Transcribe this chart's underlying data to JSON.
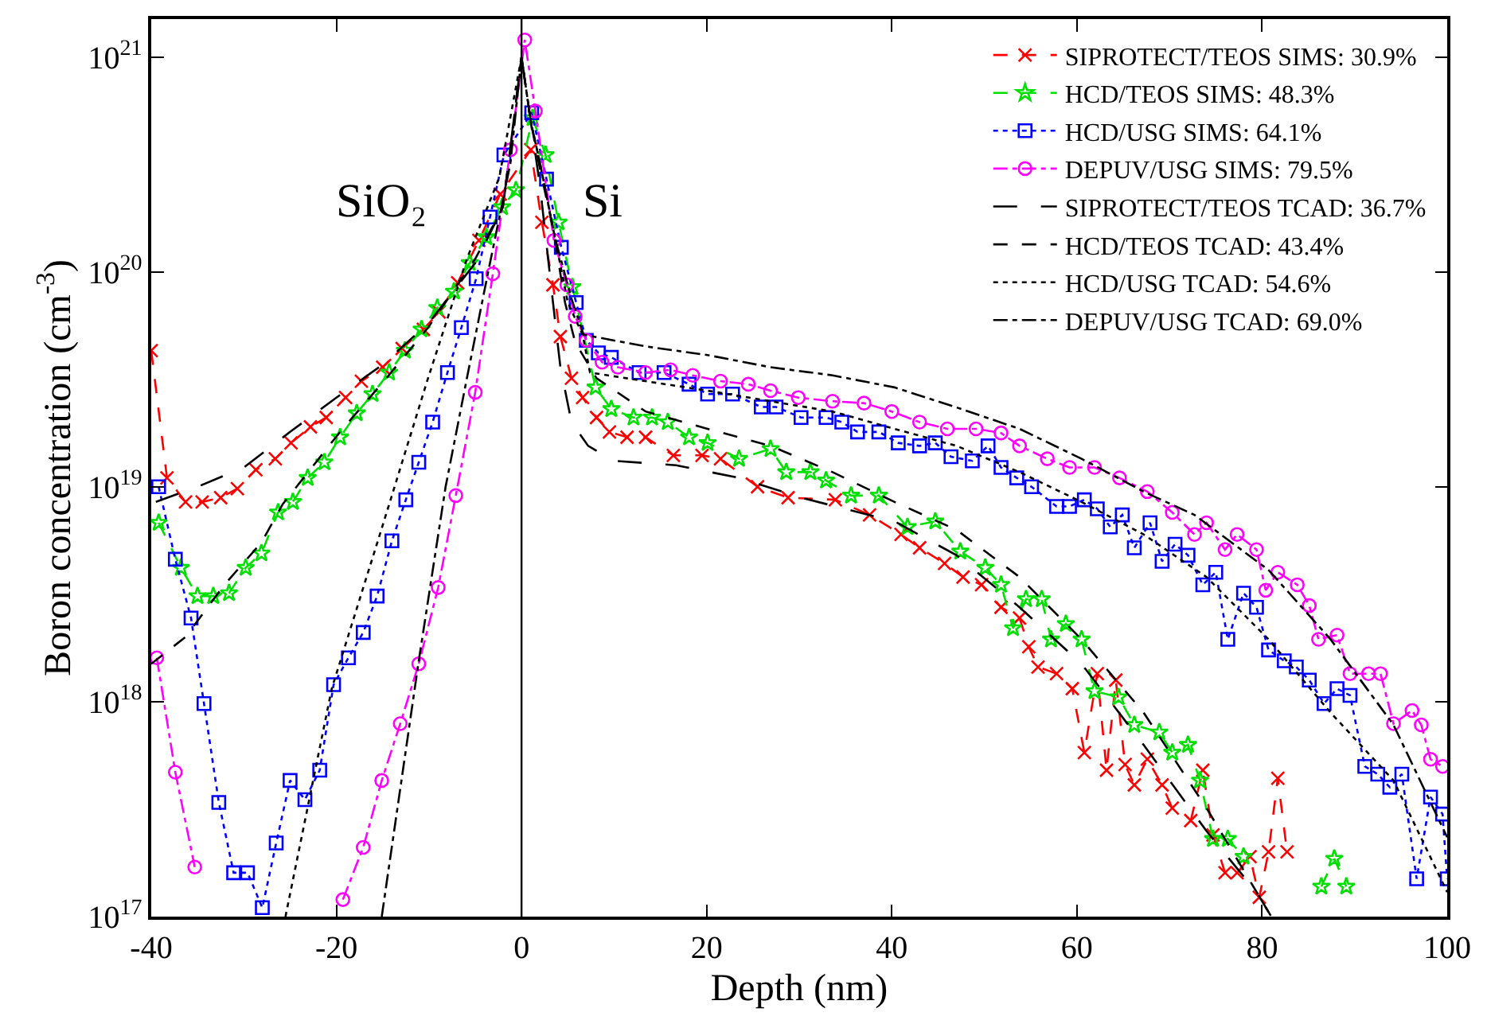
{
  "chart_data": {
    "type": "line",
    "xlabel": "Depth (nm)",
    "ylabel": "Boron concentration (cm$^{-3}$)",
    "log": "y",
    "legend": "top right",
    "xlim": [
      -40,
      100
    ],
    "xticks": [
      -40,
      -20,
      0,
      20,
      40,
      60,
      80,
      100
    ],
    "ylim": [
      1e+17,
      1.5e+21
    ],
    "yticks": [
      {
        "value": 1e+17,
        "label": "10$^{17}$"
      },
      {
        "value": 1e+18,
        "label": "10$^{18}$"
      },
      {
        "value": 1e+19,
        "label": "10$^{19}$"
      },
      {
        "value": 1e+20,
        "label": "10$^{20}$"
      },
      {
        "value": 1e+21,
        "label": "10$^{21}$"
      }
    ],
    "annotations": [
      "SiO₂",
      "Si"
    ],
    "ref_lines": [
      {
        "axis": "x",
        "value": 0,
        "color": "#000000",
        "line_style": "solid"
      }
    ],
    "series": [
      {
        "name": "SIPROTECT/TEOS SIMS: 30.9%",
        "color": "#ff0000",
        "marker": "cross",
        "line_style": "dashed",
        "x": [
          -40,
          -38.3,
          -36.3,
          -34.5,
          -32.5,
          -30.7,
          -28.7,
          -26.6,
          -24.9,
          -22.8,
          -21.1,
          -19.0,
          -17.3,
          -15.0,
          -12.9,
          -10.6,
          -8.9,
          -6.9,
          -4.6,
          -2.3,
          1.0,
          2.2,
          3.4,
          4.2,
          5.4,
          6.6,
          8.1,
          9.5,
          11.4,
          13.4,
          16.4,
          19.5,
          21.5,
          25.5,
          28.8,
          33.9,
          37.6,
          41.0,
          43.0,
          45.7,
          47.7,
          49.7,
          51.8,
          53.8,
          54.8,
          55.8,
          57.8,
          59.5,
          60.8,
          62.2,
          63.2,
          64.2,
          65.2,
          66.2,
          67.6,
          69.2,
          70.3,
          71,
          72.3,
          73.6,
          74.7,
          76.0,
          77.3,
          78.7,
          79.7,
          80.7,
          81.7,
          82.7
        ],
        "values": [
          4.3e+19,
          1.1e+19,
          8.5e+18,
          8.5e+18,
          8.9e+18,
          9.8e+18,
          1.2e+19,
          1.35e+19,
          1.6e+19,
          1.9e+19,
          2.1e+19,
          2.6e+19,
          3.1e+19,
          3.6e+19,
          4.4e+19,
          5.4e+19,
          6.5e+19,
          8.9e+19,
          1.4e+20,
          2.3e+20,
          3.7e+20,
          1.7e+20,
          8.7e+19,
          5e+19,
          3.2e+19,
          2.6e+19,
          2.1e+19,
          1.8e+19,
          1.7e+19,
          1.7e+19,
          1.4e+19,
          1.4e+19,
          1.35e+19,
          1e+19,
          8.9e+18,
          8.7e+18,
          7.4e+18,
          6e+18,
          5.2e+18,
          4.4e+18,
          3.8e+18,
          3.5e+18,
          2.75e+18,
          2.45e+18,
          1.8e+18,
          1.45e+18,
          1.35e+18,
          1.15e+18,
          5.8e+17,
          1.35e+18,
          4.8e+17,
          1.26e+18,
          5.1e+17,
          4.1e+17,
          5.4e+17,
          4.1e+17,
          3.2e+17,
          null,
          2.8e+17,
          4.8e+17,
          2.4e+17,
          1.6e+17,
          1.6e+17,
          1.9e+17,
          1.23e+17,
          2e+17,
          4.4e+17,
          2e+17
        ]
      },
      {
        "name": "HCD/TEOS SIMS: 48.3%",
        "color": "#00e000",
        "marker": "star",
        "line_style": "dashed",
        "x": [
          -39.2,
          -36.8,
          -35.0,
          -33.3,
          -31.6,
          -29.8,
          -28.1,
          -26.3,
          -24.7,
          -23.1,
          -21.3,
          -19.6,
          -17.8,
          -16.1,
          -14.3,
          -12.6,
          -10.8,
          -9.1,
          -7.3,
          -5.6,
          -3.8,
          -2.1,
          -0.6,
          1.2,
          2.6,
          4.0,
          5.5,
          8.0,
          9.7,
          12.1,
          14.1,
          15.8,
          18.1,
          20.1,
          23.5,
          26.9,
          28.6,
          31.2,
          32.9,
          35.6,
          38.6,
          41.7,
          44.7,
          47.4,
          50.1,
          51.8,
          53.1,
          54.5,
          56.2,
          57.2,
          58.8,
          60.5,
          61.9,
          64.5,
          66.2,
          68.9,
          70.3,
          72.0,
          73.3,
          74.7,
          76.3,
          78.0,
          79,
          86.4,
          87.8,
          89.1
        ],
        "values": [
          6.8e+18,
          4.2e+18,
          3.1e+18,
          3.1e+18,
          3.2e+18,
          4.2e+18,
          4.9e+18,
          7.6e+18,
          8.5e+18,
          1.1e+19,
          1.3e+19,
          1.7e+19,
          2.2e+19,
          2.7e+19,
          3.4e+19,
          4.3e+19,
          5.4e+19,
          6.8e+19,
          8.1e+19,
          1.1e+20,
          1.45e+20,
          2e+20,
          2.4e+20,
          5.2e+20,
          3.5e+20,
          1.7e+20,
          8.5e+19,
          2.9e+19,
          2.3e+19,
          2.1e+19,
          2.1e+19,
          2e+19,
          1.7e+19,
          1.6e+19,
          1.35e+19,
          1.5e+19,
          1.17e+19,
          1.17e+19,
          1.07e+19,
          9.1e+18,
          9.1e+18,
          6.5e+18,
          6.9e+18,
          5e+18,
          4.2e+18,
          3.5e+18,
          2.2e+18,
          3e+18,
          3e+18,
          1.95e+18,
          2.3e+18,
          1.95e+18,
          1.12e+18,
          1.05e+18,
          7.8e+17,
          7.2e+17,
          5.8e+17,
          6.3e+17,
          4.3e+17,
          2.3e+17,
          2.3e+17,
          1.9e+17,
          null,
          1.38e+17,
          1.86e+17,
          1.38e+17
        ]
      },
      {
        "name": "HCD/USG SIMS: 64.1%",
        "color": "#0000ff",
        "marker": "square",
        "line_style": "dotted",
        "x": [
          -39.2,
          -37.4,
          -35.7,
          -34.3,
          -32.7,
          -31.1,
          -29.6,
          -28.0,
          -26.5,
          -25.0,
          -23.4,
          -21.8,
          -20.3,
          -18.7,
          -17.1,
          -15.6,
          -14.0,
          -12.5,
          -11.1,
          -9.6,
          -8.0,
          -6.5,
          -4.9,
          -3.4,
          -1.9,
          1.1,
          2.7,
          4.3,
          5.9,
          7.0,
          8.3,
          9.7,
          12.7,
          15.4,
          18.1,
          20.1,
          22.8,
          25.9,
          27.5,
          30.2,
          32.9,
          34.6,
          36.3,
          38.6,
          40.7,
          43.0,
          44.7,
          46.4,
          48.7,
          50.4,
          51.8,
          53.5,
          55.1,
          57.8,
          59.2,
          60.8,
          62.2,
          63.6,
          64.9,
          66.2,
          67.9,
          69.2,
          70.6,
          72.0,
          73.6,
          75.0,
          76.3,
          78.0,
          79.4,
          80.7,
          82.4,
          83.7,
          85.1,
          86.7,
          88.1,
          89.5,
          91.1,
          92.5,
          93.8,
          95.1,
          96.7,
          98.2,
          99.5,
          100
        ],
        "values": [
          1e+19,
          4.6e+18,
          2.45e+18,
          9.8e+17,
          3.4e+17,
          1.6e+17,
          1.6e+17,
          1.1e+17,
          2.2e+17,
          4.3e+17,
          3.5e+17,
          4.8e+17,
          1.2e+18,
          1.6e+18,
          2.1e+18,
          3.1e+18,
          5.6e+18,
          8.7e+18,
          1.3e+19,
          2e+19,
          3.4e+19,
          5.5e+19,
          9.3e+19,
          1.8e+20,
          3.5e+20,
          5.5e+20,
          2.7e+20,
          1.3e+20,
          7.2e+19,
          4.8e+19,
          4.2e+19,
          4e+19,
          3.4e+19,
          3.4e+19,
          3e+19,
          2.7e+19,
          2.7e+19,
          2.35e+19,
          2.35e+19,
          2.1e+19,
          2.1e+19,
          2e+19,
          1.8e+19,
          1.8e+19,
          1.6e+19,
          1.55e+19,
          1.6e+19,
          1.38e+19,
          1.32e+19,
          1.55e+19,
          1.23e+19,
          1.1e+19,
          1e+19,
          8.1e+18,
          8.1e+18,
          8.7e+18,
          7.9e+18,
          6.5e+18,
          7.4e+18,
          5.2e+18,
          6.8e+18,
          4.5e+18,
          5.4e+18,
          4.8e+18,
          3.5e+18,
          4e+18,
          1.95e+18,
          3.2e+18,
          2.75e+18,
          1.74e+18,
          1.55e+18,
          1.45e+18,
          1.26e+18,
          9.8e+17,
          1.15e+18,
          1.07e+18,
          5e+17,
          4.6e+17,
          4e+17,
          4.6e+17,
          1.5e+17,
          3.6e+17,
          3e+17,
          1.5e+17
        ]
      },
      {
        "name": "DEPUV/USG SIMS: 79.5%",
        "color": "#ff00ff",
        "marker": "circle",
        "line_style": "dashdot",
        "x": [
          -39.4,
          -37.4,
          -35.3,
          -34,
          -19.3,
          -17.1,
          -15.1,
          -13.1,
          -11.1,
          -9.0,
          -7.1,
          -5.0,
          -3.1,
          -1.2,
          0.35,
          1.5,
          3.5,
          4.9,
          5.8,
          7.0,
          8.7,
          10.4,
          13.4,
          16.1,
          18.5,
          21.5,
          24.5,
          26.9,
          29.9,
          33.6,
          37.0,
          40.0,
          43.0,
          46.0,
          49.1,
          51.8,
          53.8,
          56.8,
          59.2,
          61.9,
          64.6,
          67.6,
          70.3,
          72.7,
          74.0,
          76.0,
          77.3,
          79.4,
          80.4,
          81.7,
          83.8,
          85.1,
          86.1,
          88.1,
          89.5,
          91.5,
          92.8,
          94.2,
          96.2,
          97.2,
          98.2,
          99.5
        ],
        "values": [
          1.6e+18,
          4.7e+17,
          1.7e+17,
          null,
          1.2e+17,
          2.1e+17,
          4.3e+17,
          7.9e+17,
          1.5e+18,
          3.4e+18,
          9.1e+18,
          2.75e+19,
          9.8e+19,
          3.7e+20,
          1.2e+21,
          5.6e+20,
          1.4e+20,
          8.7e+19,
          6.2e+19,
          4.8e+19,
          3.8e+19,
          3.6e+19,
          3.4e+19,
          3.5e+19,
          3.3e+19,
          3.1e+19,
          3e+19,
          2.8e+19,
          2.6e+19,
          2.5e+19,
          2.45e+19,
          2.24e+19,
          2e+19,
          1.86e+19,
          1.86e+19,
          1.78e+19,
          1.55e+19,
          1.35e+19,
          1.23e+19,
          1.23e+19,
          1.1e+19,
          9.5e+18,
          7.6e+18,
          6e+18,
          6.8e+18,
          5.1e+18,
          6e+18,
          5.1e+18,
          3.3e+18,
          4e+18,
          3.5e+18,
          2.8e+18,
          1.95e+18,
          2.04e+18,
          1.35e+18,
          1.35e+18,
          1.35e+18,
          7.9e+17,
          9.1e+17,
          7.8e+17,
          5.4e+17,
          5e+17
        ]
      },
      {
        "name": "SIPROTECT/TEOS TCAD: 36.7%",
        "color": "#000000",
        "marker": "none",
        "line_style": "longdash",
        "x": [
          -39.5,
          -35,
          -30,
          -25,
          -20,
          -15,
          -10,
          -5,
          -2,
          0,
          1,
          2,
          3.4,
          4.2,
          5.4,
          7.2,
          10,
          16.7,
          23.5,
          30.2,
          40.3,
          47,
          53.8,
          60.5,
          67.2,
          74,
          79.4,
          81
        ],
        "values": [
          8.5e+18,
          1e+19,
          1.23e+19,
          1.8e+19,
          2.6e+19,
          3.7e+19,
          5.8e+19,
          1.1e+20,
          2e+20,
          1e+21,
          5e+20,
          2.5e+20,
          7.2e+19,
          3.6e+19,
          2e+19,
          1.55e+19,
          1.32e+19,
          1.26e+19,
          1.1e+19,
          8.9e+18,
          6.9e+18,
          4.8e+18,
          2.75e+18,
          1.5e+18,
          6.3e+17,
          2.5e+17,
          1.3e+17,
          1e+17
        ]
      },
      {
        "name": "HCD/TEOS TCAD: 43.4%",
        "color": "#000000",
        "marker": "none",
        "line_style": "dashed",
        "x": [
          -40,
          -36.3,
          -32.1,
          -28.1,
          -25.8,
          -19.6,
          -14.6,
          -10.1,
          -5,
          -2,
          0,
          1,
          2,
          3.4,
          4.7,
          5.8,
          8.1,
          13.4,
          20.1,
          26.9,
          33.6,
          40.3,
          47,
          53.8,
          60.5,
          67.2,
          74,
          80.7
        ],
        "values": [
          1.5e+18,
          2e+18,
          3.5e+18,
          5.5e+18,
          8.3e+18,
          1.8e+19,
          3.2e+19,
          5.5e+19,
          1.15e+20,
          2e+20,
          1e+21,
          5e+20,
          3e+20,
          1.6e+20,
          7.2e+19,
          4.7e+19,
          3.2e+19,
          2.24e+19,
          1.86e+19,
          1.55e+19,
          1.17e+19,
          8.5e+18,
          6.3e+18,
          3.8e+18,
          1.95e+18,
          8.9e+17,
          3.2e+17,
          1.05e+17
        ]
      },
      {
        "name": "HCD/USG TCAD: 54.6%",
        "color": "#000000",
        "marker": "none",
        "line_style": "dotted",
        "x": [
          -25.5,
          -20.5,
          -15.2,
          -10.1,
          -5.9,
          -2.4,
          0,
          1,
          2,
          3.6,
          5.0,
          6.6,
          7.4,
          13.4,
          20.1,
          26.9,
          33.6,
          40.3,
          47,
          53.8,
          60.5,
          67.2,
          74,
          80.7,
          87.4,
          94.2,
          100
        ],
        "values": [
          1e+17,
          1.15e+18,
          6.2e+18,
          3.2e+19,
          1.15e+20,
          2.75e+20,
          1e+21,
          5e+20,
          3.2e+20,
          1.45e+20,
          7.2e+19,
          5.1e+19,
          3.4e+19,
          3.1e+19,
          2.8e+19,
          2.5e+19,
          2.24e+19,
          1.86e+19,
          1.55e+19,
          1.17e+19,
          8.5e+18,
          6e+18,
          3.8e+18,
          1.95e+18,
          8.9e+17,
          4.3e+17,
          1.3e+17
        ]
      },
      {
        "name": "DEPUV/USG TCAD: 69.0%",
        "color": "#000000",
        "marker": "none",
        "line_style": "dashdot",
        "x": [
          -15.1,
          -11.1,
          -8.2,
          -5.9,
          -3.6,
          -1.2,
          0,
          1,
          2,
          3.6,
          5.4,
          6.7,
          13.4,
          20.1,
          26.9,
          33.6,
          40.3,
          47,
          53.8,
          60.5,
          67.2,
          72.7,
          80.7,
          87.4,
          94.2,
          100
        ],
        "values": [
          1e+17,
          1.55e+18,
          1e+19,
          3.2e+19,
          1e+20,
          3.2e+20,
          1e+21,
          5e+20,
          3.2e+20,
          1.45e+20,
          7.5e+19,
          5.1e+19,
          4.5e+19,
          4.1e+19,
          3.6e+19,
          3.3e+19,
          2.9e+19,
          2.34e+19,
          1.86e+19,
          1.35e+19,
          9.5e+18,
          7.4e+18,
          4.1e+18,
          1.95e+18,
          7.8e+17,
          2.34e+17
        ]
      }
    ]
  }
}
